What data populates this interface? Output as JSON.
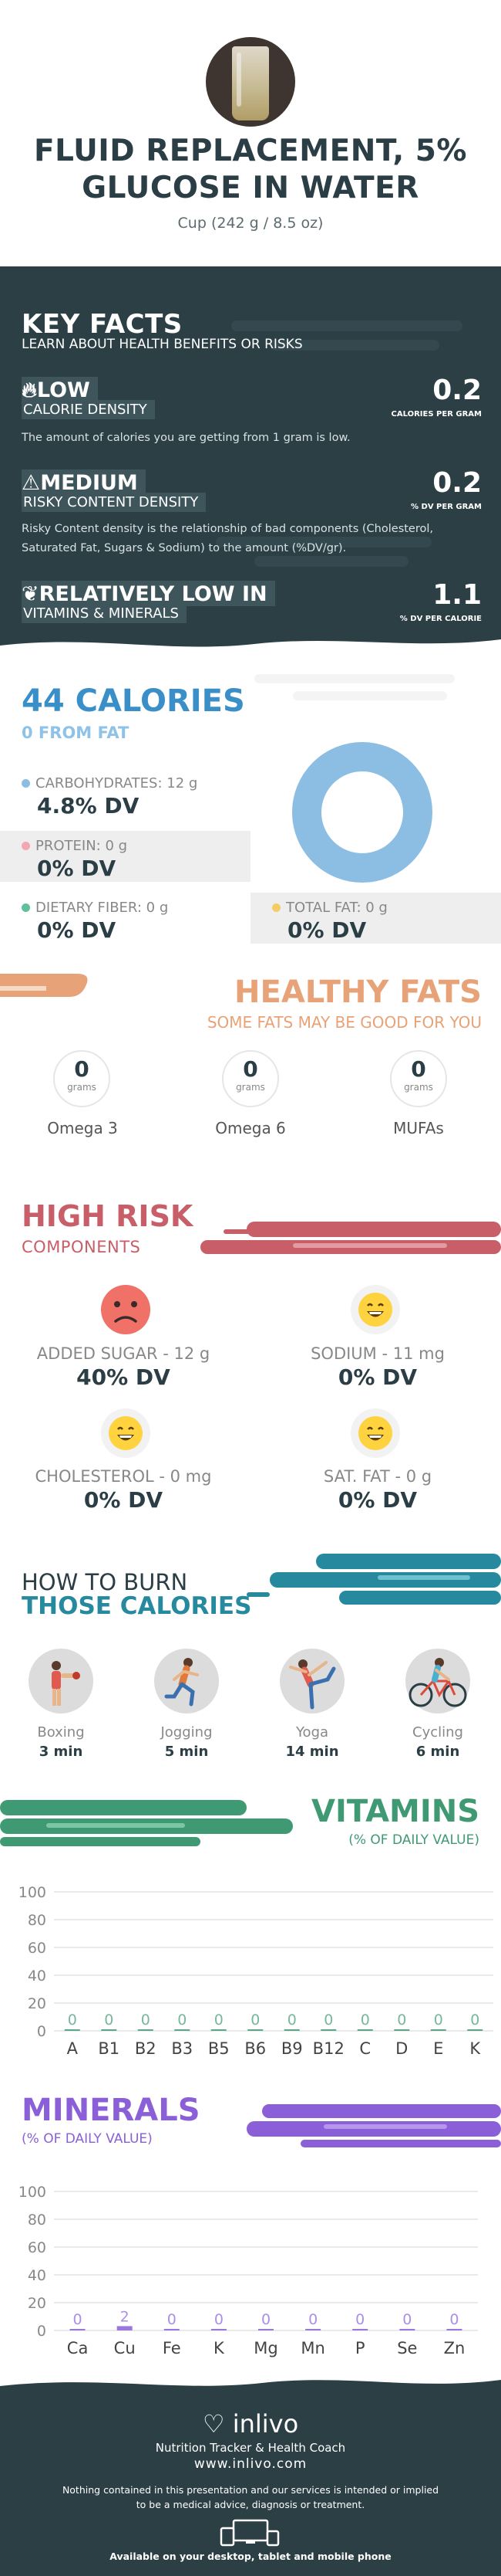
{
  "header": {
    "photo_icon": "glass-of-water-icon",
    "title": "FLUID REPLACEMENT, 5% GLUCOSE IN WATER",
    "serving": "Cup (242 g / 8.5 oz)"
  },
  "key_facts": {
    "title": "KEY FACTS",
    "subtitle": "LEARN ABOUT HEALTH BENEFITS OR RISKS",
    "facts": [
      {
        "icon": "flame-icon",
        "level": "LOW",
        "name": "CALORIE DENSITY",
        "value": "0.2",
        "unit": "CALORIES PER GRAM",
        "description": "The amount of calories you are getting from 1 gram is low."
      },
      {
        "icon": "warning-icon",
        "level": "MEDIUM",
        "name": "RISKY CONTENT DENSITY",
        "value": "0.2",
        "unit": "% DV PER GRAM",
        "description": "Risky Content density is the relationship of bad components (Cholesterol, Saturated Fat, Sugars & Sodium) to the amount (%DV/gr)."
      },
      {
        "icon": "leaf-icon",
        "level": "RELATIVELY LOW  IN",
        "name": "VITAMINS & MINERALS",
        "value": "1.1",
        "unit": "% DV PER CALORIE",
        "description": ""
      }
    ]
  },
  "calories": {
    "title": "44 CALORIES",
    "from_fat": "0 FROM FAT",
    "nutrients": [
      {
        "label": "CARBOHYDRATES: 12 g",
        "dv": "4.8% DV",
        "color": "#8cbde3"
      },
      {
        "label": "PROTEIN: 0 g",
        "dv": "0% DV",
        "color": "#f3a6b4"
      },
      {
        "label": "DIETARY FIBER: 0 g",
        "dv": "0% DV",
        "color": "#5fc29a"
      },
      {
        "label": "TOTAL FAT: 0 g",
        "dv": "0% DV",
        "color": "#f4cd62"
      }
    ],
    "donut_share": {
      "carbohydrates": 1.0,
      "protein": 0,
      "fat": 0
    }
  },
  "healthy_fats": {
    "title": "HEALTHY FATS",
    "subtitle": "SOME FATS MAY BE GOOD FOR YOU",
    "items": [
      {
        "value": "0",
        "unit": "grams",
        "name": "Omega 3"
      },
      {
        "value": "0",
        "unit": "grams",
        "name": "Omega 6"
      },
      {
        "value": "0",
        "unit": "grams",
        "name": "MUFAs"
      }
    ]
  },
  "high_risk": {
    "title": "HIGH RISK",
    "subtitle": "COMPONENTS",
    "items": [
      {
        "face": "sad-face-icon",
        "label": "ADDED SUGAR - 12 g",
        "dv": "40% DV",
        "color": "#f07167"
      },
      {
        "face": "happy-face-icon",
        "label": "SODIUM - 11 mg",
        "dv": "0% DV",
        "color": "#ffd23f"
      },
      {
        "face": "happy-face-icon",
        "label": "CHOLESTEROL - 0 mg",
        "dv": "0% DV",
        "color": "#ffd23f"
      },
      {
        "face": "happy-face-icon",
        "label": "SAT. FAT - 0 g",
        "dv": "0% DV",
        "color": "#ffd23f"
      }
    ]
  },
  "burn": {
    "title_line1": "HOW TO BURN",
    "title_line2": "THOSE CALORIES",
    "activities": [
      {
        "icon": "boxing-icon",
        "name": "Boxing",
        "time": "3 min"
      },
      {
        "icon": "jogging-icon",
        "name": "Jogging",
        "time": "5 min"
      },
      {
        "icon": "yoga-icon",
        "name": "Yoga",
        "time": "14 min"
      },
      {
        "icon": "cycling-icon",
        "name": "Cycling",
        "time": "6 min"
      }
    ]
  },
  "chart_data": [
    {
      "type": "bar",
      "title": "VITAMINS",
      "subtitle": "(% OF DAILY VALUE)",
      "categories": [
        "A",
        "B1",
        "B2",
        "B3",
        "B5",
        "B6",
        "B9",
        "B12",
        "C",
        "D",
        "E",
        "K"
      ],
      "values": [
        0,
        0,
        0,
        0,
        0,
        0,
        0,
        0,
        0,
        0,
        0,
        0
      ],
      "value_labels": [
        "0",
        "0",
        "0",
        "0",
        "0",
        "0",
        "0",
        "0",
        "0",
        "0",
        "0",
        "0"
      ],
      "yticks": [
        "0",
        "20",
        "40",
        "60",
        "80",
        "100"
      ],
      "ylim": [
        0,
        100
      ],
      "grid": true,
      "color": "#3f9a73"
    },
    {
      "type": "bar",
      "title": "MINERALS",
      "subtitle": "(% OF DAILY VALUE)",
      "categories": [
        "Ca",
        "Cu",
        "Fe",
        "K",
        "Mg",
        "Mn",
        "P",
        "Se",
        "Zn"
      ],
      "values": [
        0,
        2,
        0,
        0,
        0,
        0,
        0,
        0,
        0
      ],
      "value_labels": [
        "0",
        "2",
        "0",
        "0",
        "0",
        "0",
        "0",
        "0",
        "0"
      ],
      "yticks": [
        "0",
        "20",
        "40",
        "60",
        "80",
        "100"
      ],
      "ylim": [
        0,
        100
      ],
      "grid": true,
      "color": "#8a5fd8"
    }
  ],
  "footer": {
    "logo_icon": "heart-leaf-icon",
    "logo_text": "inlivo",
    "tagline": "Nutrition Tracker & Health Coach",
    "url": "www.inlivo.com",
    "disclaimer": "Nothing contained in this presentation and our services is intended or implied to be a medical advice, diagnosis or treatment.",
    "devices_icon": "devices-icon",
    "available": "Available on your desktop, tablet and mobile phone"
  }
}
